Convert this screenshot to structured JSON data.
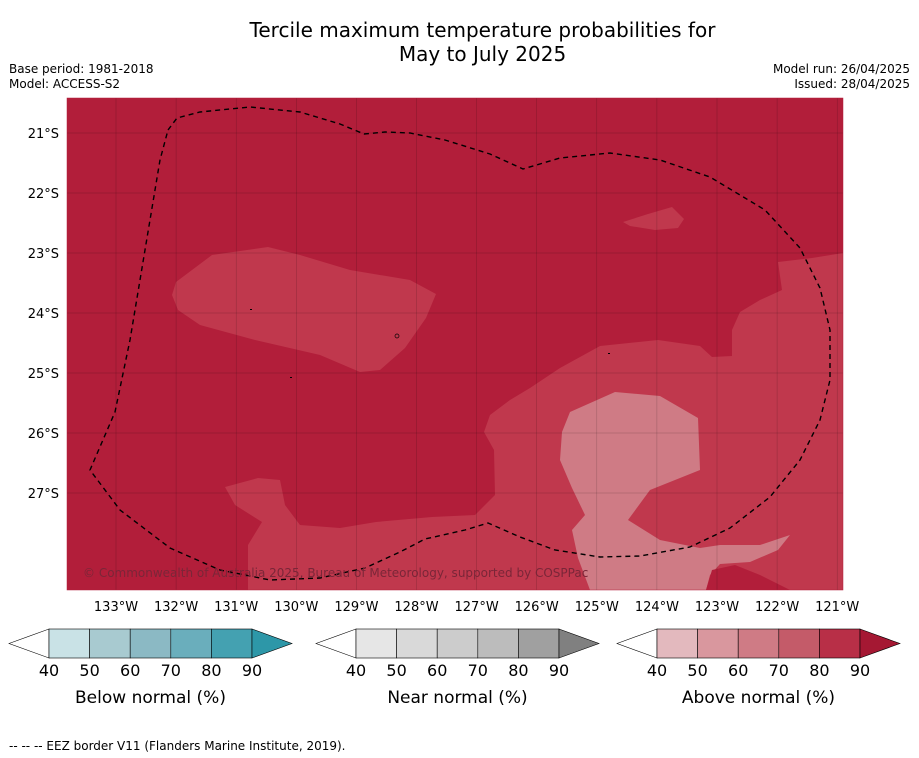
{
  "title_line1": "Tercile maximum temperature probabilities for",
  "title_line2": "May to July 2025",
  "base_period": "Base period: 1981-2018",
  "model": "Model: ACCESS-S2",
  "model_run": "Model run: 26/04/2025",
  "issued": "Issued: 28/04/2025",
  "copyright": "© Commonwealth of Australia 2025, Bureau of Meteorology, supported by COSPPac",
  "footer": "--  --  -- EEZ border V11 (Flanders Marine Institute, 2019).",
  "lat_labels": [
    "21°S",
    "22°S",
    "23°S",
    "24°S",
    "25°S",
    "26°S",
    "27°S"
  ],
  "lon_labels": [
    "133°W",
    "132°W",
    "131°W",
    "130°W",
    "129°W",
    "128°W",
    "127°W",
    "126°W",
    "125°W",
    "124°W",
    "123°W",
    "122°W",
    "121°W"
  ],
  "colors": {
    "above_80_90": "#b21e3a",
    "above_70_80": "#c0384d",
    "above_60_70": "#cf7b85"
  },
  "colorbars": [
    {
      "label": "Below normal (%)",
      "ticks": [
        "40",
        "50",
        "60",
        "70",
        "80",
        "90"
      ],
      "colors": [
        "#c9e2e6",
        "#a8cad0",
        "#8bb9c4",
        "#6aaebc",
        "#44a1b1",
        "#2d97a8"
      ]
    },
    {
      "label": "Near normal (%)",
      "ticks": [
        "40",
        "50",
        "60",
        "70",
        "80",
        "90"
      ],
      "colors": [
        "#e6e6e6",
        "#d9d9d9",
        "#cccccc",
        "#bcbcbc",
        "#a0a0a0",
        "#808080"
      ]
    },
    {
      "label": "Above normal (%)",
      "ticks": [
        "40",
        "50",
        "60",
        "70",
        "80",
        "90"
      ],
      "colors": [
        "#e3b9be",
        "#d9979e",
        "#cf7b85",
        "#c45b69",
        "#b82f47",
        "#a51833"
      ]
    }
  ]
}
